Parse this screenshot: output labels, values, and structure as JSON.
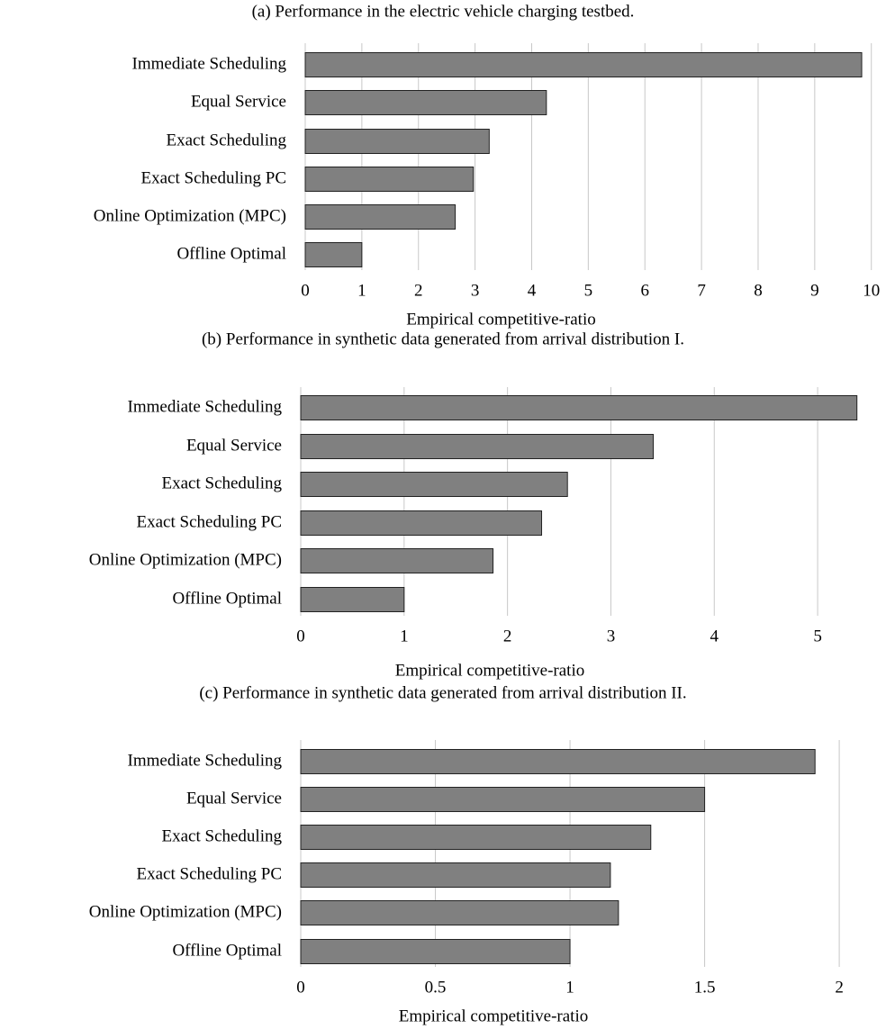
{
  "chart_data": [
    {
      "type": "bar",
      "title": "(a) Performance in the electric vehicle charging testbed.",
      "x_label": "Empirical competitive-ratio",
      "categories": [
        "Immediate Scheduling",
        "Equal Service",
        "Exact Scheduling",
        "Exact Scheduling PC",
        "Online Optimization (MPC)",
        "Offline Optimal"
      ],
      "values": [
        9.83,
        4.26,
        3.25,
        2.97,
        2.65,
        1.0
      ],
      "color": "#808080",
      "xlim": [
        0,
        10.1
      ],
      "xticks": [
        0,
        1,
        2,
        3,
        4,
        5,
        6,
        7,
        8,
        9,
        10
      ],
      "grid": true
    },
    {
      "type": "bar",
      "title": "(b) Performance in synthetic data generated from arrival distribution I.",
      "x_label": "Empirical competitive-ratio",
      "categories": [
        "Immediate Scheduling",
        "Equal Service",
        "Exact Scheduling",
        "Exact Scheduling PC",
        "Online Optimization (MPC)",
        "Offline Optimal"
      ],
      "values": [
        5.38,
        3.41,
        2.58,
        2.33,
        1.86,
        1.0
      ],
      "color": "#808080",
      "xlim": [
        0,
        5.4
      ],
      "xticks": [
        0,
        1,
        2,
        3,
        4,
        5
      ],
      "grid": true
    },
    {
      "type": "bar",
      "title": "(c) Performance in synthetic data generated from arrival distribution II.",
      "x_label": "Empirical competitive-ratio",
      "categories": [
        "Immediate Scheduling",
        "Equal Service",
        "Exact Scheduling",
        "Exact Scheduling PC",
        "Online Optimization (MPC)",
        "Offline Optimal"
      ],
      "values": [
        1.91,
        1.5,
        1.3,
        1.15,
        1.18,
        1.0
      ],
      "color": "#808080",
      "xlim": [
        0,
        2.1
      ],
      "xticks": [
        0,
        0.5,
        1,
        1.5,
        2
      ],
      "grid": true
    }
  ]
}
